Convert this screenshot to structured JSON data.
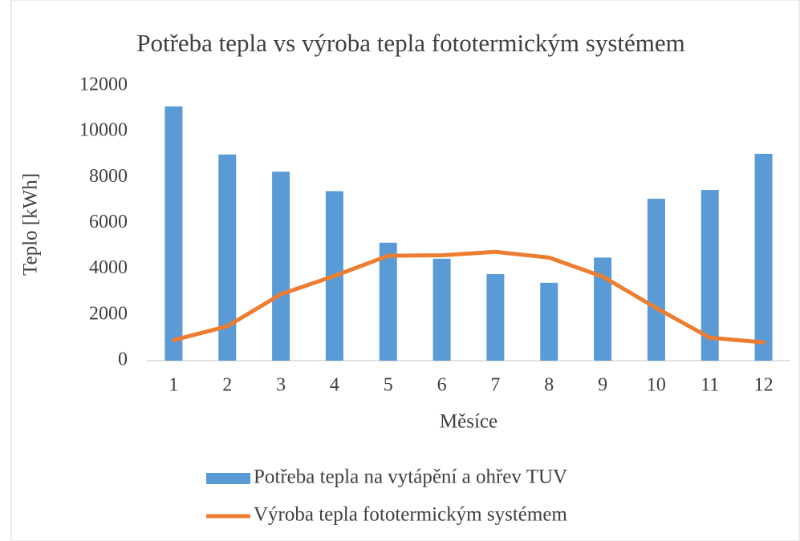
{
  "chart_data": {
    "type": "bar",
    "title": "Potřeba tepla vs výroba tepla fototermickým systémem",
    "y_label": "Teplo [kWh]",
    "x_label": "Měsíce",
    "categories": [
      "1",
      "2",
      "3",
      "4",
      "5",
      "6",
      "7",
      "8",
      "9",
      "10",
      "11",
      "12"
    ],
    "series": [
      {
        "name": "Potřeba tepla na vytápění a ohřev TUV",
        "type": "bar",
        "color": "#5b9bd5",
        "values": [
          11100,
          9000,
          8250,
          7400,
          5150,
          4450,
          3780,
          3400,
          4500,
          7070,
          7450,
          9030
        ]
      },
      {
        "name": "Výroba tepla fototermickým systémem",
        "type": "line",
        "color": "#ed7d31",
        "values": [
          900,
          1500,
          2900,
          3700,
          4580,
          4600,
          4750,
          4500,
          3670,
          2300,
          1000,
          800
        ]
      }
    ],
    "ylim": [
      0,
      12000
    ],
    "yticks": [
      0,
      2000,
      4000,
      6000,
      8000,
      10000,
      12000
    ],
    "grid": false,
    "legend": "bottom"
  }
}
